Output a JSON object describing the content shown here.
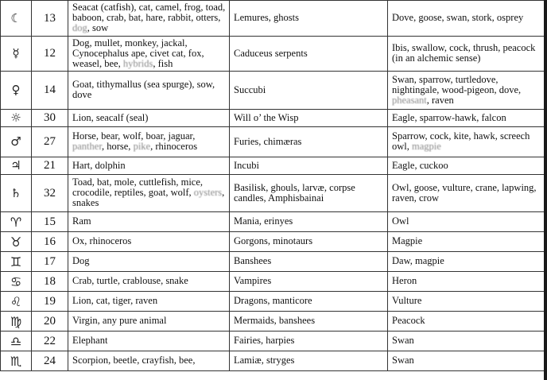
{
  "rows": [
    {
      "symbol": "☾",
      "number": "13",
      "animals": [
        "Seacat (catfish), cat, camel, frog, toad, baboon, crab, bat, hare, rabbit, otters, ",
        "dog",
        ", sow"
      ],
      "beings": "Lemures, ghosts",
      "birds": [
        "Dove, goose, swan, stork, osprey"
      ]
    },
    {
      "symbol": "☿",
      "number": "12",
      "animals": [
        "Dog, mullet, monkey, jackal, Cynocephalus ape, civet cat, fox, weasel, bee, ",
        "hybrids",
        ", fish"
      ],
      "beings": "Caduceus serpents",
      "birds": [
        "Ibis, swallow, cock, thrush, peacock (in an alchemic sense)"
      ]
    },
    {
      "symbol": "♀",
      "number": "14",
      "animals": [
        "Goat, tithymallus (sea spurge), sow, dove"
      ],
      "beings": "Succubi",
      "birds": [
        "Swan, sparrow, turtledove, nightingale, wood-pigeon, dove, ",
        "pheasant",
        ", raven"
      ]
    },
    {
      "symbol": "☼",
      "number": "30",
      "animals": [
        "Lion, seacalf (seal)"
      ],
      "beings": "Will o’ the Wisp",
      "birds": [
        "Eagle, sparrow-hawk, falcon"
      ]
    },
    {
      "symbol": "♂",
      "number": "27",
      "animals": [
        "Horse, bear, wolf, boar, jaguar, ",
        "panther",
        ", horse, ",
        "pike",
        ", rhinoceros"
      ],
      "beings": "Furies, chimæras",
      "birds": [
        "Sparrow, cock, kite, hawk, screech owl, ",
        "magpie",
        ""
      ]
    },
    {
      "symbol": "♃",
      "number": "21",
      "animals": [
        "Hart, dolphin"
      ],
      "beings": "Incubi",
      "birds": [
        "Eagle, cuckoo"
      ]
    },
    {
      "symbol": "♄",
      "number": "32",
      "animals": [
        "Toad, bat, mole, cuttlefish, mice, crocodile, reptiles, goat, wolf, ",
        "oysters",
        ", snakes"
      ],
      "beings": "Basilisk, ghouls, larvæ, corpse candles, Amphisbainai",
      "birds": [
        "Owl, goose, vulture, crane, lapwing, raven, crow"
      ]
    },
    {
      "symbol": "♈",
      "number": "15",
      "animals": [
        "Ram"
      ],
      "beings": "Mania, erinyes",
      "birds": [
        "Owl"
      ]
    },
    {
      "symbol": "♉",
      "number": "16",
      "animals": [
        "Ox, rhinoceros"
      ],
      "beings": "Gorgons, minotaurs",
      "birds": [
        "Magpie"
      ]
    },
    {
      "symbol": "♊",
      "number": "17",
      "animals": [
        "Dog"
      ],
      "beings": "Banshees",
      "birds": [
        "Daw, magpie"
      ]
    },
    {
      "symbol": "♋",
      "number": "18",
      "animals": [
        "Crab, turtle, crablouse, snake"
      ],
      "beings": "Vampires",
      "birds": [
        "Heron"
      ]
    },
    {
      "symbol": "♌",
      "number": "19",
      "animals": [
        "Lion, cat, tiger, raven"
      ],
      "beings": "Dragons, manticore",
      "birds": [
        "Vulture"
      ]
    },
    {
      "symbol": "♍",
      "number": "20",
      "animals": [
        "Virgin, any pure animal"
      ],
      "beings": "Mermaids, banshees",
      "birds": [
        "Peacock"
      ]
    },
    {
      "symbol": "♎",
      "number": "22",
      "animals": [
        "Elephant"
      ],
      "beings": "Fairies, harpies",
      "birds": [
        "Swan"
      ]
    },
    {
      "symbol": "♏",
      "number": "24",
      "animals": [
        "Scorpion, beetle, crayfish, bee,"
      ],
      "beings": "Lamiæ, stryges",
      "birds": [
        "Swan"
      ]
    }
  ]
}
